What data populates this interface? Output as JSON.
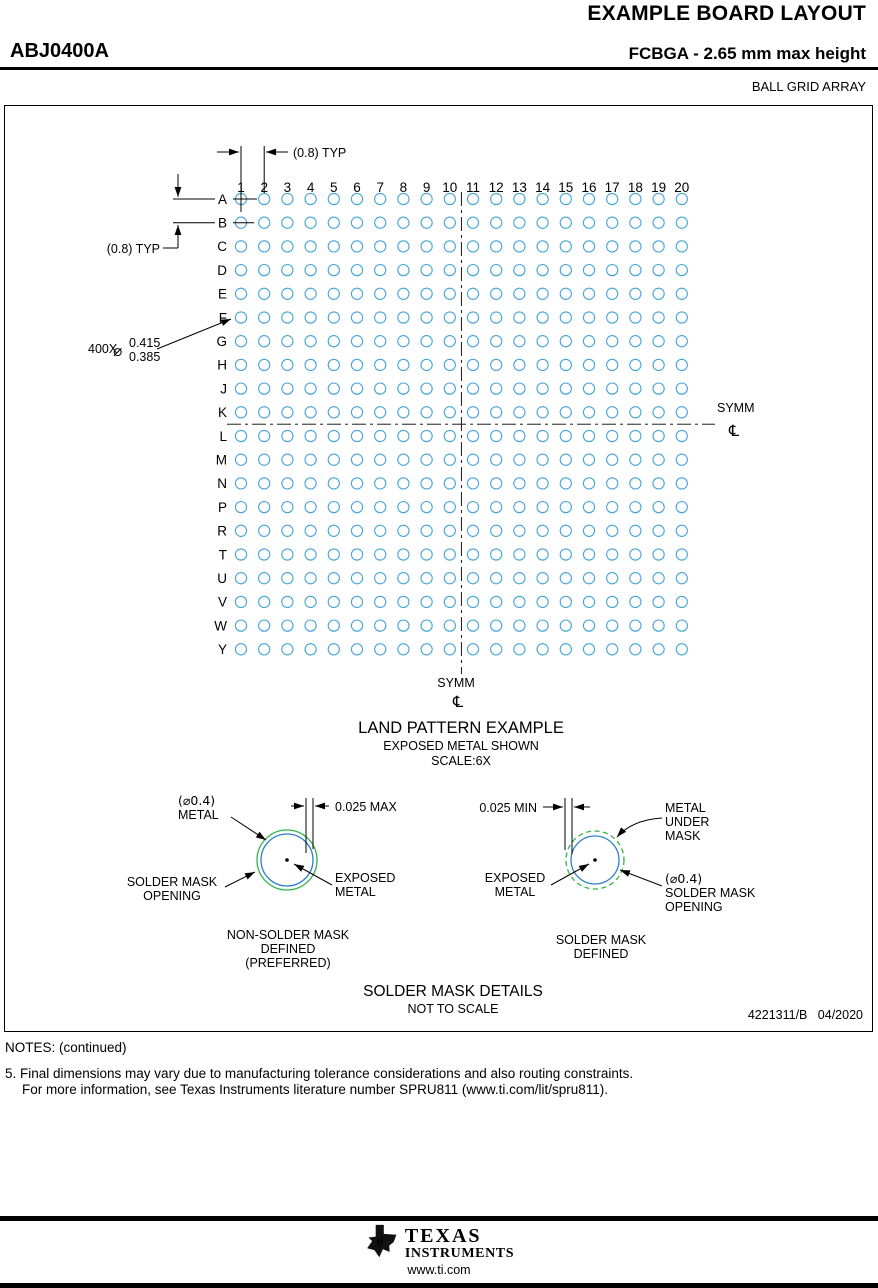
{
  "header": {
    "title": "EXAMPLE BOARD LAYOUT",
    "part_number": "ABJ0400A",
    "subtitle": "FCBGA - 2.65 mm max height",
    "package_family": "BALL GRID ARRAY"
  },
  "figure": {
    "grid": {
      "columns": [
        "1",
        "2",
        "3",
        "4",
        "5",
        "6",
        "7",
        "8",
        "9",
        "10",
        "11",
        "12",
        "13",
        "14",
        "15",
        "16",
        "17",
        "18",
        "19",
        "20"
      ],
      "rows": [
        "A",
        "B",
        "C",
        "D",
        "E",
        "F",
        "G",
        "H",
        "J",
        "K",
        "L",
        "M",
        "N",
        "P",
        "R",
        "T",
        "U",
        "V",
        "W",
        "Y"
      ],
      "pitch_label_top": "(0.8) TYP",
      "pitch_label_left": "(0.8) TYP",
      "ball_count_label": "400X",
      "diameter_symbol": "⌀",
      "ball_dia_max": "0.415",
      "ball_dia_min": "0.385",
      "symm_label": "SYMM",
      "centerline_symbol": "℄"
    },
    "land_pattern": {
      "title": "LAND PATTERN EXAMPLE",
      "subtitle": "EXPOSED METAL SHOWN",
      "scale": "SCALE:6X"
    },
    "nsmd": {
      "metal_label_1": "(⌀0.4)",
      "metal_label_2": "METAL",
      "gap_label": "0.025 MAX",
      "mask_label_1": "SOLDER MASK",
      "mask_label_2": "OPENING",
      "exposed_label_1": "EXPOSED",
      "exposed_label_2": "METAL",
      "caption_1": "NON-SOLDER MASK",
      "caption_2": "DEFINED",
      "caption_3": "(PREFERRED)"
    },
    "smd": {
      "gap_label": "0.025 MIN",
      "metal_label_1": "METAL",
      "metal_label_2": "UNDER",
      "metal_label_3": "MASK",
      "exposed_label_1": "EXPOSED",
      "exposed_label_2": "METAL",
      "opening_label_1": "(⌀0.4)",
      "opening_label_2": "SOLDER MASK",
      "opening_label_3": "OPENING",
      "caption_1": "SOLDER MASK",
      "caption_2": "DEFINED"
    },
    "details_title": "SOLDER MASK DETAILS",
    "details_subtitle": "NOT TO SCALE",
    "doc_number": "4221311/B   04/2020"
  },
  "notes": {
    "heading": "NOTES: (continued)",
    "note5_line1": "5. Final dimensions may vary due to manufacturing tolerance considerations and also routing constraints.",
    "note5_line2": "For more information, see Texas Instruments literature number SPRU811 (www.ti.com/lit/spru811)."
  },
  "footer": {
    "logo_monogram": "ti",
    "brand_line1": "TEXAS",
    "brand_line2": "INSTRUMENTS",
    "website": "www.ti.com"
  },
  "colors": {
    "ball": "#44a4da",
    "metal_blue": "#2e7fca",
    "mask_green": "#33b34a"
  }
}
